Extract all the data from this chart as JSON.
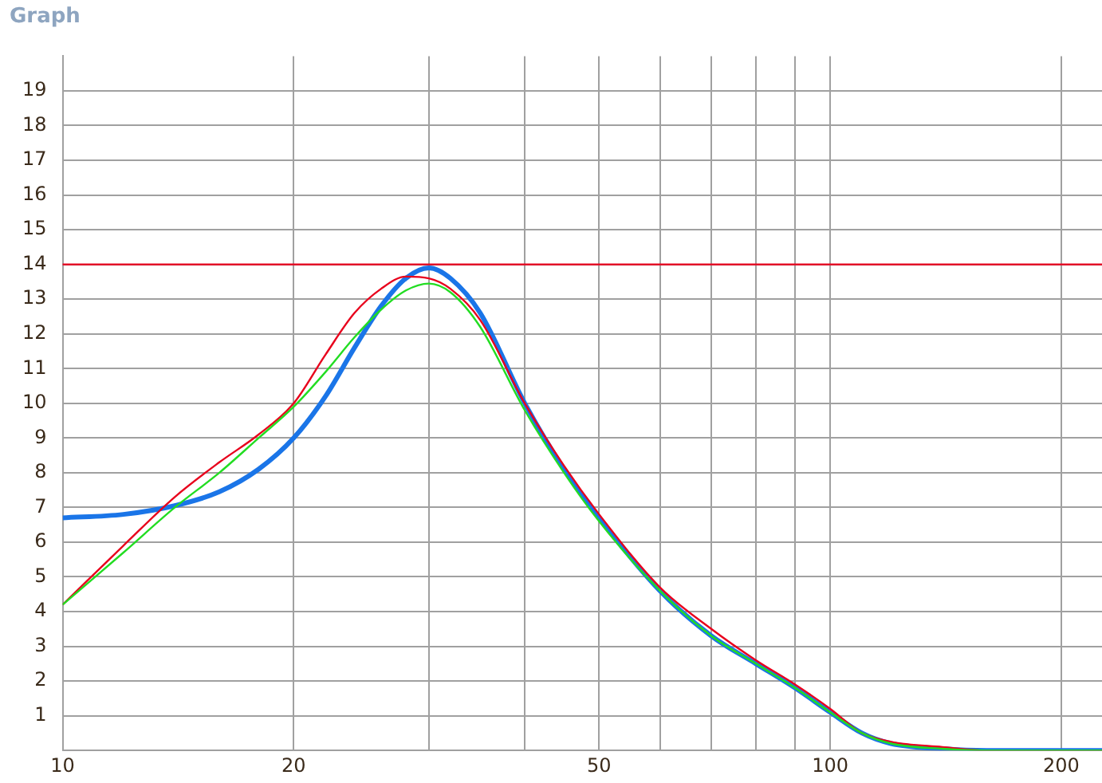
{
  "chart_data": {
    "type": "line",
    "title": "Graph",
    "xlim": [
      10,
      226
    ],
    "log": "x",
    "xticks": [
      10,
      20,
      {
        "value": 30,
        "label": null
      },
      {
        "value": 40,
        "label": null
      },
      50,
      {
        "value": 60,
        "label": null
      },
      {
        "value": 70,
        "label": null
      },
      {
        "value": 80,
        "label": null
      },
      {
        "value": 90,
        "label": null
      },
      100,
      200
    ],
    "ylim": [
      0,
      20
    ],
    "yticks": [
      1,
      2,
      3,
      4,
      5,
      6,
      7,
      8,
      9,
      10,
      11,
      12,
      13,
      14,
      15,
      16,
      17,
      18,
      19
    ],
    "grid": true,
    "legend": false,
    "marker": "none",
    "line_style": "solid",
    "x": [
      10,
      12,
      14,
      16,
      18,
      20,
      22,
      24,
      26,
      28,
      30,
      32,
      35,
      40,
      45,
      50,
      60,
      70,
      80,
      90,
      100,
      110,
      120,
      140,
      160,
      226
    ],
    "series": [
      {
        "color": "#22dd22",
        "values": [
          4.2,
          5.7,
          7.0,
          8.0,
          9.0,
          9.9,
          10.9,
          11.9,
          12.7,
          13.25,
          13.45,
          13.2,
          12.2,
          9.8,
          8.0,
          6.6,
          4.6,
          3.3,
          2.5,
          1.8,
          1.1,
          0.5,
          0.2,
          0.05,
          0,
          0
        ]
      },
      {
        "color": "#e8001c",
        "values": [
          4.2,
          5.9,
          7.3,
          8.3,
          9.1,
          10.0,
          11.4,
          12.6,
          13.3,
          13.65,
          13.6,
          13.3,
          12.4,
          10.0,
          8.2,
          6.8,
          4.7,
          3.5,
          2.6,
          1.9,
          1.2,
          0.5,
          0.25,
          0.1,
          0,
          0
        ]
      },
      {
        "color": "#1a75e8",
        "values": [
          6.7,
          6.8,
          7.05,
          7.45,
          8.1,
          9.0,
          10.2,
          11.6,
          12.8,
          13.6,
          13.9,
          13.6,
          12.6,
          10.0,
          8.1,
          6.7,
          4.6,
          3.3,
          2.5,
          1.8,
          1.1,
          0.5,
          0.2,
          0.05,
          0,
          0
        ]
      }
    ],
    "ref_lines": [
      {
        "axis": "y",
        "value": 14,
        "color": "#e8001c"
      }
    ]
  }
}
